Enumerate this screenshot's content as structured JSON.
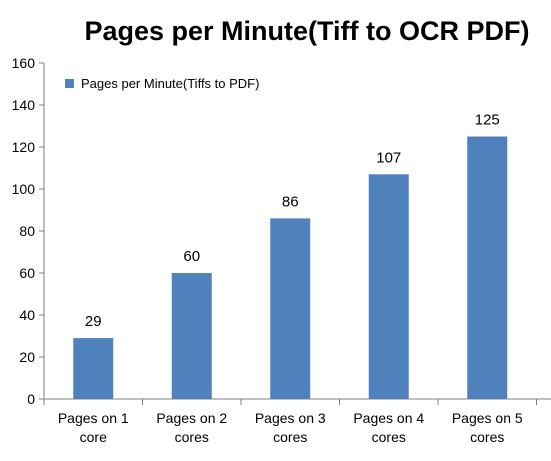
{
  "chart_data": {
    "type": "bar",
    "title": "Pages per Minute(Tiff to OCR PDF)",
    "xlabel": "",
    "ylabel": "",
    "categories": [
      [
        "Pages on 1",
        "core"
      ],
      [
        "Pages on 2",
        "cores"
      ],
      [
        "Pages on 3",
        "cores"
      ],
      [
        "Pages on 4",
        "cores"
      ],
      [
        "Pages on 5",
        "cores"
      ]
    ],
    "series": [
      {
        "name": "Pages per Minute(Tiffs to PDF)",
        "values": [
          29,
          60,
          86,
          107,
          125
        ],
        "color": "#4F81BD"
      }
    ],
    "ylim": [
      0,
      160
    ],
    "yticks": [
      0,
      20,
      40,
      60,
      80,
      100,
      120,
      140,
      160
    ],
    "legend_position": "top-left",
    "grid": false,
    "data_labels": true
  },
  "colors": {
    "bar": "#4F81BD",
    "axis": "#808080",
    "background": "#FFFFFF"
  }
}
